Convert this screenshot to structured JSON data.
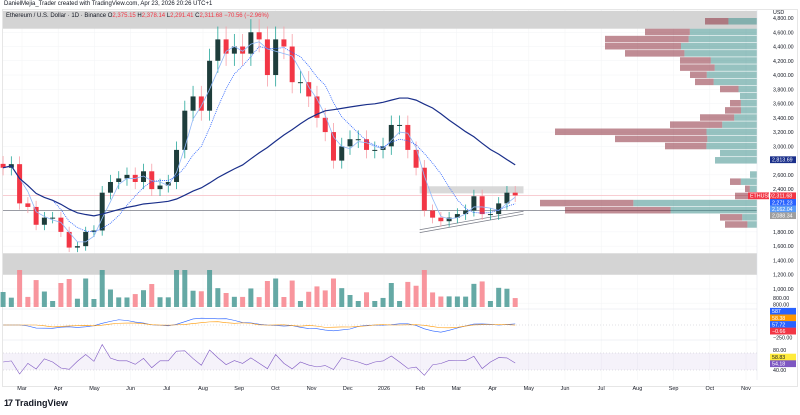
{
  "header": {
    "credit": "DanielMejia_Trader created with TradingView.com, Apr 23, 2026 20:26 UTC+1",
    "symbol": "Ethereum / U.S. Dollar · 1D · Binance",
    "o_label": "O",
    "o": "2,375.15",
    "h_label": "H",
    "h": "2,378.14",
    "l_label": "L",
    "l": "2,291.41",
    "c_label": "C",
    "c": "2,311.68",
    "change": "−70.56 (−2.96%)"
  },
  "footer": {
    "brand": "TradingView",
    "logo": "tradingview-logo"
  },
  "colors": {
    "up": "#26a69a",
    "down": "#f23645",
    "ma_fast": "#90b8f8",
    "ma_mid": "#2962ff",
    "ma_slow": "#1a2f8a",
    "zone": "#cfcfcf",
    "vp_up": "#3f8f8c",
    "vp_down": "#8c2e3c"
  },
  "chart_data": {
    "type": "candlestick",
    "currency": "USD",
    "price_scale": {
      "ticks": [
        4800,
        4600,
        4400,
        4200,
        4000,
        3800,
        3600,
        3400,
        3200,
        3000,
        2600,
        2400,
        1800,
        1600,
        1400,
        1200,
        1000,
        800
      ],
      "range": [
        1000,
        4900
      ]
    },
    "time_axis": [
      "Mar",
      "Apr",
      "May",
      "Jun",
      "Jul",
      "Aug",
      "Sep",
      "Oct",
      "Nov",
      "Dec",
      "2026",
      "Feb",
      "Mar",
      "Apr",
      "May",
      "Jun",
      "Jul",
      "Aug",
      "Sep",
      "Oct",
      "Nov"
    ],
    "weekly_closes": [
      {
        "d": "2025-02-10",
        "c": 2700
      },
      {
        "d": "2025-02-17",
        "c": 2750
      },
      {
        "d": "2025-02-24",
        "c": 2200
      },
      {
        "d": "2025-03-03",
        "c": 2150
      },
      {
        "d": "2025-03-10",
        "c": 1900
      },
      {
        "d": "2025-03-17",
        "c": 2000
      },
      {
        "d": "2025-03-24",
        "c": 2000
      },
      {
        "d": "2025-03-31",
        "c": 1800
      },
      {
        "d": "2025-04-07",
        "c": 1580
      },
      {
        "d": "2025-04-14",
        "c": 1600
      },
      {
        "d": "2025-04-21",
        "c": 1800
      },
      {
        "d": "2025-04-28",
        "c": 1820
      },
      {
        "d": "2025-05-05",
        "c": 2350
      },
      {
        "d": "2025-05-12",
        "c": 2500
      },
      {
        "d": "2025-05-19",
        "c": 2550
      },
      {
        "d": "2025-05-26",
        "c": 2600
      },
      {
        "d": "2025-06-02",
        "c": 2500
      },
      {
        "d": "2025-06-09",
        "c": 2650
      },
      {
        "d": "2025-06-16",
        "c": 2400
      },
      {
        "d": "2025-06-23",
        "c": 2450
      },
      {
        "d": "2025-06-30",
        "c": 2500
      },
      {
        "d": "2025-07-07",
        "c": 2950
      },
      {
        "d": "2025-07-14",
        "c": 3500
      },
      {
        "d": "2025-07-21",
        "c": 3700
      },
      {
        "d": "2025-07-28",
        "c": 3500
      },
      {
        "d": "2025-08-04",
        "c": 4200
      },
      {
        "d": "2025-08-11",
        "c": 4500
      },
      {
        "d": "2025-08-18",
        "c": 4300
      },
      {
        "d": "2025-08-25",
        "c": 4400
      },
      {
        "d": "2025-09-01",
        "c": 4300
      },
      {
        "d": "2025-09-08",
        "c": 4600
      },
      {
        "d": "2025-09-15",
        "c": 4500
      },
      {
        "d": "2025-09-22",
        "c": 4000
      },
      {
        "d": "2025-09-29",
        "c": 4500
      },
      {
        "d": "2025-10-06",
        "c": 4400
      },
      {
        "d": "2025-10-13",
        "c": 3900
      },
      {
        "d": "2025-10-20",
        "c": 3900
      },
      {
        "d": "2025-10-27",
        "c": 3700
      },
      {
        "d": "2025-11-03",
        "c": 3400
      },
      {
        "d": "2025-11-10",
        "c": 3200
      },
      {
        "d": "2025-11-17",
        "c": 2800
      },
      {
        "d": "2025-11-24",
        "c": 3000
      },
      {
        "d": "2025-12-01",
        "c": 3100
      },
      {
        "d": "2025-12-08",
        "c": 3100
      },
      {
        "d": "2025-12-15",
        "c": 2950
      },
      {
        "d": "2025-12-22",
        "c": 2950
      },
      {
        "d": "2025-12-29",
        "c": 3000
      },
      {
        "d": "2026-01-05",
        "c": 3300
      },
      {
        "d": "2026-01-12",
        "c": 3300
      },
      {
        "d": "2026-01-19",
        "c": 2950
      },
      {
        "d": "2026-01-26",
        "c": 2700
      },
      {
        "d": "2026-02-02",
        "c": 2100
      },
      {
        "d": "2026-02-09",
        "c": 2000
      },
      {
        "d": "2026-02-16",
        "c": 1950
      },
      {
        "d": "2026-02-23",
        "c": 2000
      },
      {
        "d": "2026-03-02",
        "c": 2050
      },
      {
        "d": "2026-03-09",
        "c": 2100
      },
      {
        "d": "2026-03-16",
        "c": 2300
      },
      {
        "d": "2026-03-23",
        "c": 2050
      },
      {
        "d": "2026-03-30",
        "c": 2050
      },
      {
        "d": "2026-04-06",
        "c": 2200
      },
      {
        "d": "2026-04-13",
        "c": 2350
      },
      {
        "d": "2026-04-20",
        "c": 2311.68
      }
    ],
    "zones": [
      {
        "from": 4650,
        "to": 4900
      },
      {
        "from": 1200,
        "to": 1500
      }
    ],
    "range_box": {
      "from": 2340,
      "to": 2440,
      "start": "2026-02-01",
      "end": "2026-04-30"
    },
    "horizontal_lines": [
      {
        "price": 2100,
        "color": "#787b86"
      },
      {
        "price": 2311.68,
        "color": "#f7c6cb"
      }
    ],
    "channel": {
      "start": "2026-02-01",
      "end": "2026-04-30",
      "lower": [
        1790,
        2050
      ],
      "upper": [
        1830,
        2090
      ]
    },
    "price_labels": [
      {
        "text": "2,813.69",
        "price": 2813.69,
        "color": "#1a2f8a"
      },
      {
        "text": "2,311.68",
        "tag": "ETHUSD",
        "price": 2311.68,
        "color": "#f23645"
      },
      {
        "text": "2,271.23",
        "price": 2271.23,
        "color": "#2962ff"
      },
      {
        "text": "2,162.04",
        "price": 2162.04,
        "color": "#5b9cf6"
      },
      {
        "text": "2,088.34",
        "price": 2088.34,
        "color": "#9e9e9e"
      }
    ],
    "volume_profile": [
      {
        "p": 4750,
        "v": 52,
        "up": 0.55
      },
      {
        "p": 4600,
        "v": 112,
        "up": 0.6
      },
      {
        "p": 4500,
        "v": 152,
        "up": 0.45
      },
      {
        "p": 4400,
        "v": 152,
        "up": 0.5
      },
      {
        "p": 4300,
        "v": 132,
        "up": 0.55
      },
      {
        "p": 4200,
        "v": 77,
        "up": 0.6
      },
      {
        "p": 4100,
        "v": 77,
        "up": 0.55
      },
      {
        "p": 4000,
        "v": 67,
        "up": 0.75
      },
      {
        "p": 3900,
        "v": 62,
        "up": 0.7
      },
      {
        "p": 3800,
        "v": 37,
        "up": 0.5
      },
      {
        "p": 3700,
        "v": 17,
        "up": 1
      },
      {
        "p": 3600,
        "v": 27,
        "up": 0.6
      },
      {
        "p": 3500,
        "v": 32,
        "up": 0.5
      },
      {
        "p": 3400,
        "v": 57,
        "up": 0.4
      },
      {
        "p": 3300,
        "v": 87,
        "up": 0.4
      },
      {
        "p": 3200,
        "v": 202,
        "up": 0.25
      },
      {
        "p": 3100,
        "v": 142,
        "up": 0.35
      },
      {
        "p": 3000,
        "v": 92,
        "up": 0.55
      },
      {
        "p": 2900,
        "v": 37,
        "up": 1
      },
      {
        "p": 2800,
        "v": 42,
        "up": 1
      },
      {
        "p": 2600,
        "v": 7,
        "up": 1
      },
      {
        "p": 2500,
        "v": 27,
        "up": 0.6
      },
      {
        "p": 2400,
        "v": 12,
        "up": 0.6
      },
      {
        "p": 2300,
        "v": 22,
        "up": 0.4
      },
      {
        "p": 2200,
        "v": 217,
        "up": 0.57
      },
      {
        "p": 2100,
        "v": 192,
        "up": 0.45
      },
      {
        "p": 2000,
        "v": 37,
        "up": 0.4
      },
      {
        "p": 1900,
        "v": 32,
        "up": 0.3
      }
    ],
    "volume_pane": {
      "label": "587",
      "tick": "800.00"
    },
    "macd_pane": {
      "labels": [
        "58.38",
        "57.72",
        "−0.66"
      ],
      "tick": "−250.00"
    },
    "rsi_pane": {
      "labels": [
        "58.83",
        "54.18"
      ],
      "ticks": [
        "80.00",
        "40.00"
      ]
    }
  }
}
